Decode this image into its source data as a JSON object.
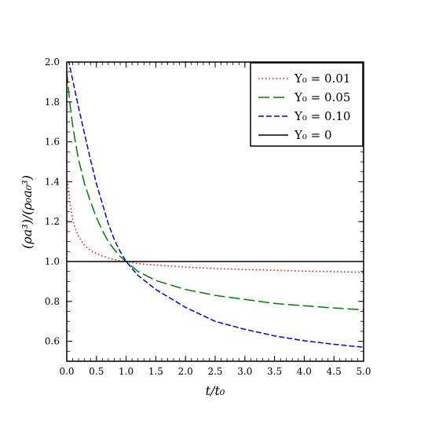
{
  "chart_data": {
    "type": "line",
    "xlabel": "t/t₀",
    "ylabel": "(ρa³)/(ρ₀a₀³)",
    "xlim": [
      0,
      5
    ],
    "ylim": [
      0.5,
      2.0
    ],
    "x_ticks": [
      0.0,
      0.5,
      1.0,
      1.5,
      2.0,
      2.5,
      3.0,
      3.5,
      4.0,
      4.5,
      5.0
    ],
    "x_tick_labels": [
      "0.0",
      "0.5",
      "1.0",
      "1.5",
      "2.0",
      "2.5",
      "3.0",
      "3.5",
      "4.0",
      "4.5",
      "5.0"
    ],
    "y_ticks": [
      0.6,
      0.8,
      1.0,
      1.2,
      1.4,
      1.6,
      1.8,
      2.0
    ],
    "y_tick_labels": [
      "0.6",
      "0.8",
      "1.0",
      "1.2",
      "1.4",
      "1.6",
      "1.8",
      "2.0"
    ],
    "grid": false,
    "legend_position": "top-right",
    "series": [
      {
        "name": "Y₀ = 0.01",
        "color": "#ff0000",
        "dash": "dotted",
        "x": [
          0.02,
          0.05,
          0.1,
          0.15,
          0.2,
          0.3,
          0.4,
          0.5,
          0.6,
          0.7,
          0.8,
          0.9,
          1.0,
          1.2,
          1.5,
          2.0,
          2.5,
          3.0,
          3.5,
          4.0,
          4.5,
          5.0
        ],
        "y": [
          1.39,
          1.3,
          1.21,
          1.16,
          1.125,
          1.08,
          1.055,
          1.04,
          1.028,
          1.018,
          1.01,
          1.004,
          1.0,
          0.99,
          0.982,
          0.972,
          0.965,
          0.96,
          0.956,
          0.952,
          0.949,
          0.946
        ]
      },
      {
        "name": "Y₀ = 0.05",
        "color": "#008000",
        "dash": "long-dash",
        "x": [
          0.0,
          0.05,
          0.1,
          0.15,
          0.2,
          0.3,
          0.4,
          0.5,
          0.6,
          0.7,
          0.8,
          0.9,
          1.0,
          1.2,
          1.5,
          2.0,
          2.5,
          3.0,
          3.5,
          4.0,
          4.5,
          5.0
        ],
        "y": [
          1.95,
          1.8,
          1.68,
          1.59,
          1.51,
          1.39,
          1.3,
          1.22,
          1.155,
          1.1,
          1.06,
          1.025,
          1.0,
          0.95,
          0.905,
          0.86,
          0.83,
          0.81,
          0.79,
          0.778,
          0.767,
          0.758
        ]
      },
      {
        "name": "Y₀ = 0.10",
        "color": "#0000ff",
        "dash": "dashed",
        "x": [
          0.0,
          0.05,
          0.1,
          0.15,
          0.2,
          0.3,
          0.4,
          0.5,
          0.6,
          0.7,
          0.8,
          0.9,
          1.0,
          1.2,
          1.5,
          2.0,
          2.5,
          3.0,
          3.5,
          4.0,
          4.5,
          5.0
        ],
        "y": [
          2.05,
          1.98,
          1.91,
          1.84,
          1.77,
          1.64,
          1.51,
          1.39,
          1.29,
          1.19,
          1.11,
          1.05,
          1.0,
          0.93,
          0.86,
          0.77,
          0.7,
          0.66,
          0.627,
          0.603,
          0.585,
          0.57
        ]
      },
      {
        "name": "Y₀ = 0",
        "color": "#000000",
        "dash": "solid",
        "x": [
          0.0,
          5.0
        ],
        "y": [
          1.0,
          1.0
        ]
      }
    ]
  }
}
